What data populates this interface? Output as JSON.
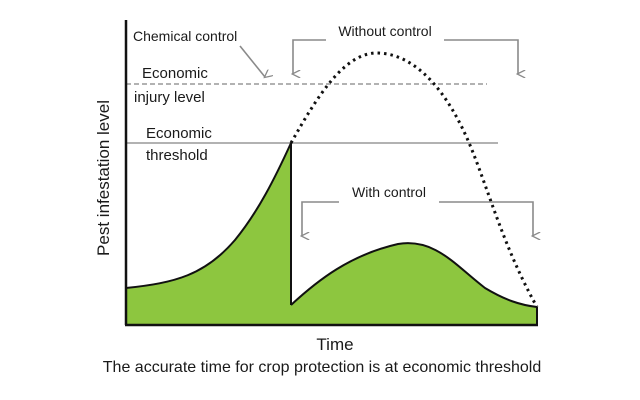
{
  "labels": {
    "chemical_control": "Chemical control",
    "without_control": "Without control",
    "with_control": "With control",
    "economic_injury_level": [
      "Economic",
      "injury level"
    ],
    "economic_threshold": [
      "Economic",
      "threshold"
    ],
    "y_axis": "Pest infestation level",
    "x_axis": "Time",
    "caption": "The accurate time for crop protection is at economic threshold"
  },
  "colors": {
    "fill_green": "#8dc63f",
    "curve": "#111111",
    "reference_lines": "#999999",
    "arrows": "#8a8a8a",
    "axes": "#111111"
  }
}
